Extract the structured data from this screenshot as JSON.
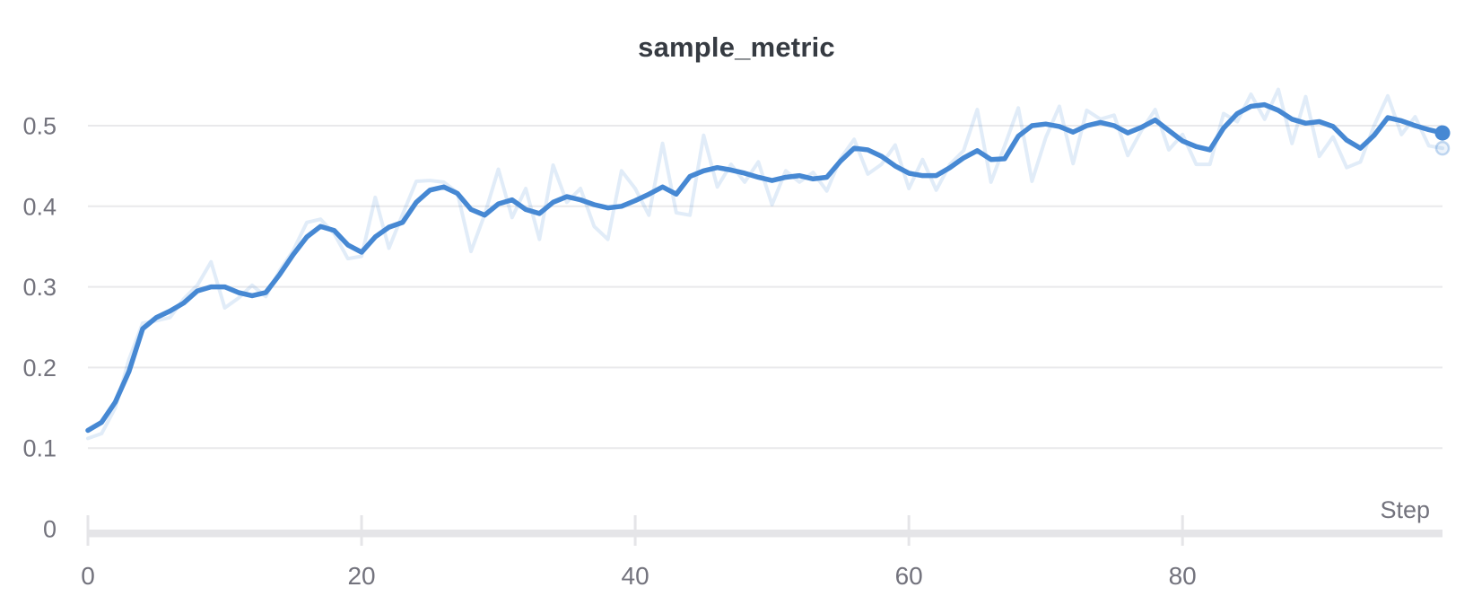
{
  "title": "sample_metric",
  "colors": {
    "accent_line": "#4688d3",
    "raw_line": "rgba(70,136,211,0.16)",
    "raw_marker_stroke": "rgba(70,136,211,0.32)",
    "raw_marker_fill": "rgba(70,136,211,0.10)",
    "gridline": "#e9e9eb",
    "axis_bar": "#e5e5e8",
    "tick_text": "#73737d",
    "title_text": "#363b42",
    "background": "#ffffff"
  },
  "axis": {
    "x_label": "Step",
    "x_tick_labels": [
      "0",
      "20",
      "40",
      "60",
      "80"
    ],
    "y_tick_labels": [
      "0",
      "0.1",
      "0.2",
      "0.3",
      "0.4",
      "0.5"
    ]
  },
  "chart_data": {
    "type": "line",
    "title": "sample_metric",
    "xlabel": "Step",
    "ylabel": "",
    "xlim": [
      0,
      99
    ],
    "ylim": [
      0,
      0.56
    ],
    "xticks": [
      0,
      20,
      40,
      60,
      80
    ],
    "yticks": [
      0,
      0.1,
      0.2,
      0.3,
      0.4,
      0.5
    ],
    "grid": "horizontal",
    "legend": "none",
    "x_range": [
      0,
      99
    ],
    "x_step": 1,
    "end_markers": true,
    "series": [
      {
        "name": "sample_metric (raw)",
        "role": "raw",
        "values": [
          0.112,
          0.118,
          0.15,
          0.21,
          0.255,
          0.258,
          0.262,
          0.285,
          0.302,
          0.331,
          0.274,
          0.286,
          0.302,
          0.288,
          0.32,
          0.345,
          0.38,
          0.384,
          0.366,
          0.335,
          0.338,
          0.411,
          0.348,
          0.39,
          0.431,
          0.432,
          0.43,
          0.417,
          0.344,
          0.39,
          0.446,
          0.386,
          0.422,
          0.359,
          0.451,
          0.405,
          0.422,
          0.375,
          0.359,
          0.444,
          0.422,
          0.389,
          0.478,
          0.392,
          0.389,
          0.488,
          0.424,
          0.452,
          0.43,
          0.455,
          0.402,
          0.444,
          0.43,
          0.442,
          0.419,
          0.459,
          0.483,
          0.44,
          0.452,
          0.476,
          0.422,
          0.458,
          0.42,
          0.452,
          0.469,
          0.52,
          0.43,
          0.475,
          0.522,
          0.431,
          0.485,
          0.524,
          0.453,
          0.519,
          0.508,
          0.513,
          0.463,
          0.494,
          0.52,
          0.47,
          0.489,
          0.452,
          0.452,
          0.515,
          0.505,
          0.539,
          0.508,
          0.545,
          0.478,
          0.536,
          0.462,
          0.486,
          0.448,
          0.455,
          0.5,
          0.537,
          0.489,
          0.511,
          0.475,
          0.472
        ]
      },
      {
        "name": "sample_metric (smoothed)",
        "role": "smoothed",
        "values": [
          0.122,
          0.132,
          0.157,
          0.195,
          0.248,
          0.262,
          0.27,
          0.28,
          0.295,
          0.3,
          0.3,
          0.293,
          0.289,
          0.293,
          0.315,
          0.34,
          0.362,
          0.375,
          0.37,
          0.352,
          0.343,
          0.362,
          0.374,
          0.38,
          0.405,
          0.42,
          0.424,
          0.416,
          0.396,
          0.389,
          0.403,
          0.408,
          0.396,
          0.391,
          0.405,
          0.412,
          0.408,
          0.402,
          0.398,
          0.4,
          0.407,
          0.415,
          0.424,
          0.415,
          0.437,
          0.444,
          0.448,
          0.445,
          0.441,
          0.436,
          0.432,
          0.436,
          0.438,
          0.434,
          0.436,
          0.456,
          0.472,
          0.47,
          0.462,
          0.45,
          0.441,
          0.438,
          0.438,
          0.448,
          0.46,
          0.469,
          0.458,
          0.459,
          0.487,
          0.5,
          0.502,
          0.499,
          0.492,
          0.5,
          0.504,
          0.5,
          0.491,
          0.498,
          0.507,
          0.494,
          0.481,
          0.474,
          0.47,
          0.497,
          0.515,
          0.524,
          0.526,
          0.519,
          0.508,
          0.503,
          0.505,
          0.499,
          0.482,
          0.472,
          0.488,
          0.51,
          0.506,
          0.5,
          0.495,
          0.491
        ]
      }
    ]
  }
}
